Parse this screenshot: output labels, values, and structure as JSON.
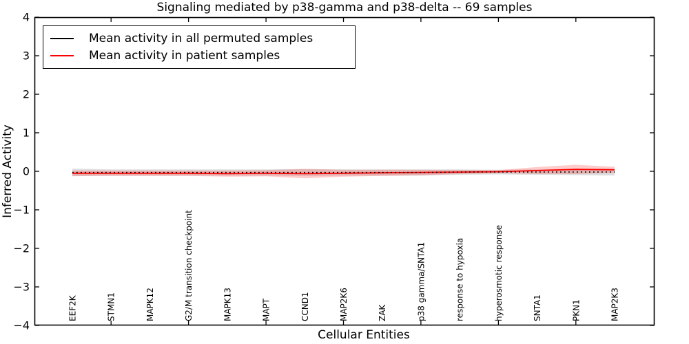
{
  "figure": {
    "background": "#ffffff"
  },
  "chart_data": {
    "type": "line",
    "title": "Signaling mediated by p38-gamma and p38-delta -- 69 samples",
    "xlabel": "Cellular Entities",
    "ylabel": "Inferred Activity",
    "ylim": [
      -4,
      4
    ],
    "yticks": [
      -4,
      -3,
      -2,
      -1,
      0,
      1,
      2,
      3,
      4
    ],
    "grid": false,
    "legend_position": "upper left",
    "categories": [
      "EEF2K",
      "STMN1",
      "MAPK12",
      "G2/M transition checkpoint",
      "MAPK13",
      "MAPT",
      "CCND1",
      "MAP2K6",
      "ZAK",
      "p38 gamma/SNTA1",
      "response to hypoxia",
      "hyperosmotic response",
      "SNTA1",
      "PKN1",
      "MAP2K3"
    ],
    "series": [
      {
        "name": "Mean activity in all permuted samples",
        "color": "#000000",
        "line_style": "dotted",
        "values": [
          -0.03,
          -0.03,
          -0.03,
          -0.03,
          -0.03,
          -0.03,
          -0.03,
          -0.03,
          -0.03,
          -0.03,
          -0.02,
          -0.02,
          -0.02,
          -0.02,
          -0.02
        ],
        "band_half_width": [
          0.1,
          0.08,
          0.08,
          0.08,
          0.08,
          0.08,
          0.09,
          0.08,
          0.08,
          0.08,
          0.07,
          0.06,
          0.07,
          0.08,
          0.09
        ],
        "band_color": "#000000",
        "band_opacity": 0.13
      },
      {
        "name": "Mean activity in patient samples",
        "color": "#ff0000",
        "line_style": "solid",
        "values": [
          -0.05,
          -0.05,
          -0.05,
          -0.05,
          -0.06,
          -0.05,
          -0.06,
          -0.05,
          -0.04,
          -0.03,
          -0.02,
          -0.01,
          0.02,
          0.05,
          0.04
        ],
        "band_half_width": [
          0.07,
          0.07,
          0.07,
          0.07,
          0.08,
          0.08,
          0.12,
          0.09,
          0.08,
          0.07,
          0.05,
          0.04,
          0.09,
          0.12,
          0.08
        ],
        "band_color": "#ff0000",
        "band_opacity": 0.2
      }
    ]
  }
}
